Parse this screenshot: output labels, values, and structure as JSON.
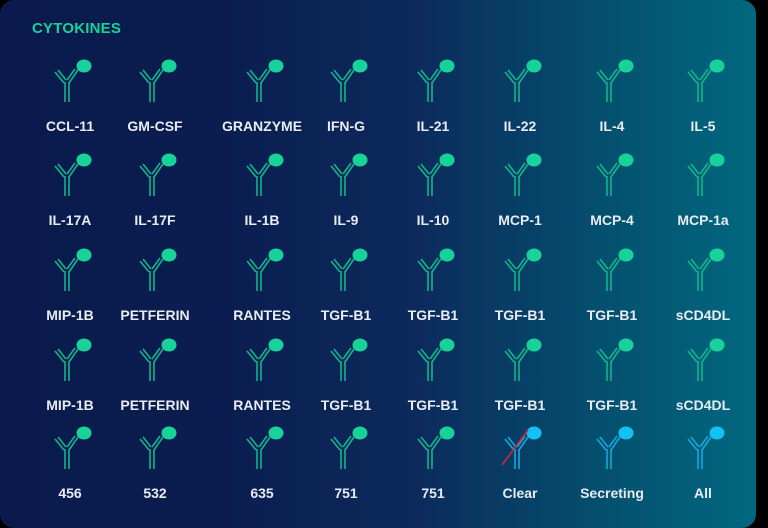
{
  "title": "CYTOKINES",
  "colors": {
    "accent_green": "#17d39a",
    "accent_blue": "#1aa6dc",
    "dot_blue": "#12c2f5",
    "clear_slash": "#d0283a",
    "label": "#e8ecf2"
  },
  "rows": [
    [
      {
        "label": "CCL-11",
        "icon": "antibody-icon",
        "variant": "green"
      },
      {
        "label": "GM-CSF",
        "icon": "antibody-icon",
        "variant": "green"
      },
      {
        "label": "GRANZYME",
        "icon": "antibody-icon",
        "variant": "green"
      },
      {
        "label": "IFN-G",
        "icon": "antibody-icon",
        "variant": "green"
      },
      {
        "label": "IL-21",
        "icon": "antibody-icon",
        "variant": "green"
      },
      {
        "label": "IL-22",
        "icon": "antibody-icon",
        "variant": "green"
      },
      {
        "label": "IL-4",
        "icon": "antibody-icon",
        "variant": "green"
      },
      {
        "label": "IL-5",
        "icon": "antibody-icon",
        "variant": "green"
      }
    ],
    [
      {
        "label": "IL-17A",
        "icon": "antibody-icon",
        "variant": "green"
      },
      {
        "label": "IL-17F",
        "icon": "antibody-icon",
        "variant": "green"
      },
      {
        "label": "IL-1B",
        "icon": "antibody-icon",
        "variant": "green"
      },
      {
        "label": "IL-9",
        "icon": "antibody-icon",
        "variant": "green"
      },
      {
        "label": "IL-10",
        "icon": "antibody-icon",
        "variant": "green"
      },
      {
        "label": "MCP-1",
        "icon": "antibody-icon",
        "variant": "green"
      },
      {
        "label": "MCP-4",
        "icon": "antibody-icon",
        "variant": "green"
      },
      {
        "label": "MCP-1a",
        "icon": "antibody-icon",
        "variant": "green"
      }
    ],
    [
      {
        "label": "MIP-1B",
        "icon": "antibody-icon",
        "variant": "green"
      },
      {
        "label": "PETFERIN",
        "icon": "antibody-icon",
        "variant": "green"
      },
      {
        "label": "RANTES",
        "icon": "antibody-icon",
        "variant": "green"
      },
      {
        "label": "TGF-B1",
        "icon": "antibody-icon",
        "variant": "green"
      },
      {
        "label": "TGF-B1",
        "icon": "antibody-icon",
        "variant": "green"
      },
      {
        "label": "TGF-B1",
        "icon": "antibody-icon",
        "variant": "green"
      },
      {
        "label": "TGF-B1",
        "icon": "antibody-icon",
        "variant": "green"
      },
      {
        "label": "sCD4DL",
        "icon": "antibody-icon",
        "variant": "green"
      }
    ],
    [
      {
        "label": "MIP-1B",
        "icon": "antibody-icon",
        "variant": "green"
      },
      {
        "label": "PETFERIN",
        "icon": "antibody-icon",
        "variant": "green"
      },
      {
        "label": "RANTES",
        "icon": "antibody-icon",
        "variant": "green"
      },
      {
        "label": "TGF-B1",
        "icon": "antibody-icon",
        "variant": "green"
      },
      {
        "label": "TGF-B1",
        "icon": "antibody-icon",
        "variant": "green"
      },
      {
        "label": "TGF-B1",
        "icon": "antibody-icon",
        "variant": "green"
      },
      {
        "label": "TGF-B1",
        "icon": "antibody-icon",
        "variant": "green"
      },
      {
        "label": "sCD4DL",
        "icon": "antibody-icon",
        "variant": "green"
      }
    ],
    [
      {
        "label": "456",
        "icon": "antibody-icon",
        "variant": "green"
      },
      {
        "label": "532",
        "icon": "antibody-icon",
        "variant": "green"
      },
      {
        "label": "635",
        "icon": "antibody-icon",
        "variant": "green"
      },
      {
        "label": "751",
        "icon": "antibody-icon",
        "variant": "green"
      },
      {
        "label": "751",
        "icon": "antibody-icon",
        "variant": "green"
      },
      {
        "label": "Clear",
        "icon": "antibody-clear-icon",
        "variant": "blue-clear"
      },
      {
        "label": "Secreting",
        "icon": "antibody-icon",
        "variant": "blue"
      },
      {
        "label": "All",
        "icon": "antibody-icon",
        "variant": "blue"
      }
    ]
  ]
}
